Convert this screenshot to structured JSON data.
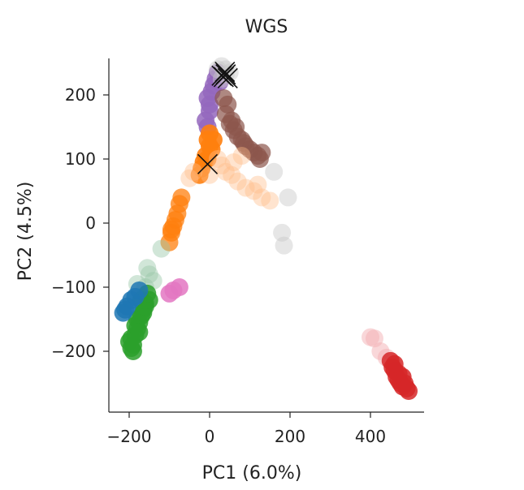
{
  "chart_data": {
    "type": "scatter",
    "title": "WGS",
    "xlabel": "PC1 (6.0%)",
    "ylabel": "PC2 (4.5%)",
    "xlim": [
      -240,
      540
    ],
    "ylim": [
      -295,
      260
    ],
    "xticks": [
      -200,
      0,
      200,
      400
    ],
    "xtick_labels": [
      "−200",
      "0",
      "200",
      "400"
    ],
    "yticks": [
      -200,
      -100,
      0,
      100,
      200
    ],
    "ytick_labels": [
      "−200",
      "−100",
      "0",
      "100",
      "200"
    ],
    "grid": false,
    "legend": "none",
    "series": [
      {
        "color": "#9467bd",
        "opacity": 0.85,
        "points": [
          [
            -5,
            195
          ],
          [
            0,
            175
          ],
          [
            5,
            205
          ],
          [
            10,
            215
          ],
          [
            15,
            225
          ],
          [
            20,
            235
          ],
          [
            25,
            220
          ],
          [
            -10,
            160
          ],
          [
            -5,
            150
          ],
          [
            0,
            185
          ]
        ]
      },
      {
        "color": "#8c564b",
        "opacity": 0.7,
        "points": [
          [
            40,
            170
          ],
          [
            50,
            155
          ],
          [
            60,
            145
          ],
          [
            70,
            135
          ],
          [
            80,
            130
          ],
          [
            90,
            120
          ],
          [
            100,
            115
          ],
          [
            110,
            110
          ],
          [
            120,
            105
          ],
          [
            130,
            110
          ],
          [
            45,
            185
          ],
          [
            35,
            195
          ],
          [
            55,
            160
          ],
          [
            65,
            150
          ],
          [
            85,
            125
          ],
          [
            125,
            100
          ]
        ]
      },
      {
        "color": "#ff7f0e",
        "opacity": 0.9,
        "points": [
          [
            -5,
            130
          ],
          [
            0,
            120
          ],
          [
            5,
            115
          ],
          [
            -10,
            105
          ],
          [
            -15,
            95
          ],
          [
            -20,
            85
          ],
          [
            -5,
            100
          ],
          [
            10,
            130
          ],
          [
            0,
            140
          ],
          [
            -25,
            75
          ]
        ]
      },
      {
        "color": "#ffbb88",
        "opacity": 0.4,
        "points": [
          [
            20,
            100
          ],
          [
            30,
            90
          ],
          [
            40,
            80
          ],
          [
            55,
            75
          ],
          [
            70,
            65
          ],
          [
            90,
            55
          ],
          [
            110,
            50
          ],
          [
            130,
            40
          ],
          [
            150,
            35
          ],
          [
            60,
            95
          ],
          [
            80,
            105
          ],
          [
            -40,
            80
          ],
          [
            -50,
            70
          ],
          [
            0,
            75
          ],
          [
            120,
            60
          ]
        ]
      },
      {
        "color": "#ff7f0e",
        "opacity": 0.75,
        "points": [
          [
            -75,
            30
          ],
          [
            -80,
            15
          ],
          [
            -85,
            5
          ],
          [
            -90,
            -5
          ],
          [
            -95,
            -15
          ],
          [
            -100,
            -30
          ],
          [
            -70,
            40
          ],
          [
            -95,
            -10
          ]
        ]
      },
      {
        "color": "#c7c7c7",
        "opacity": 0.45,
        "points": [
          [
            20,
            240
          ],
          [
            30,
            245
          ],
          [
            40,
            240
          ],
          [
            50,
            235
          ],
          [
            30,
            225
          ],
          [
            40,
            232
          ],
          [
            160,
            80
          ],
          [
            195,
            40
          ],
          [
            180,
            -15
          ],
          [
            185,
            -35
          ]
        ]
      },
      {
        "color": "#98c8a8",
        "opacity": 0.45,
        "points": [
          [
            -120,
            -40
          ],
          [
            -150,
            -80
          ],
          [
            -160,
            -100
          ],
          [
            -170,
            -115
          ],
          [
            -140,
            -90
          ],
          [
            -180,
            -95
          ],
          [
            -155,
            -70
          ]
        ]
      },
      {
        "color": "#2ca02c",
        "opacity": 0.85,
        "points": [
          [
            -195,
            -180
          ],
          [
            -190,
            -190
          ],
          [
            -185,
            -175
          ],
          [
            -180,
            -165
          ],
          [
            -175,
            -155
          ],
          [
            -170,
            -145
          ],
          [
            -165,
            -135
          ],
          [
            -160,
            -125
          ],
          [
            -180,
            -150
          ],
          [
            -185,
            -160
          ],
          [
            -195,
            -195
          ],
          [
            -190,
            -200
          ],
          [
            -175,
            -170
          ],
          [
            -165,
            -140
          ],
          [
            -160,
            -130
          ],
          [
            -170,
            -120
          ],
          [
            -200,
            -185
          ],
          [
            -150,
            -120
          ],
          [
            -155,
            -110
          ]
        ]
      },
      {
        "color": "#1f77b4",
        "opacity": 0.85,
        "points": [
          [
            -215,
            -140
          ],
          [
            -205,
            -130
          ],
          [
            -195,
            -120
          ],
          [
            -185,
            -115
          ],
          [
            -175,
            -105
          ],
          [
            -210,
            -135
          ]
        ]
      },
      {
        "color": "#e377c2",
        "opacity": 0.85,
        "points": [
          [
            -100,
            -110
          ],
          [
            -90,
            -105
          ],
          [
            -75,
            -100
          ]
        ]
      },
      {
        "color": "#f4b0b4",
        "opacity": 0.5,
        "points": [
          [
            400,
            -178
          ],
          [
            410,
            -180
          ],
          [
            425,
            -200
          ],
          [
            440,
            -210
          ]
        ]
      },
      {
        "color": "#d62728",
        "opacity": 0.85,
        "points": [
          [
            450,
            -215
          ],
          [
            455,
            -225
          ],
          [
            460,
            -230
          ],
          [
            465,
            -240
          ],
          [
            470,
            -245
          ],
          [
            475,
            -250
          ],
          [
            480,
            -255
          ],
          [
            485,
            -250
          ],
          [
            490,
            -258
          ],
          [
            460,
            -220
          ],
          [
            470,
            -235
          ],
          [
            480,
            -240
          ],
          [
            495,
            -262
          ]
        ]
      }
    ],
    "markers": {
      "symbol": "x",
      "color": "#111111",
      "points": [
        [
          30,
          230
        ],
        [
          35,
          228
        ],
        [
          40,
          232
        ],
        [
          45,
          226
        ],
        [
          38,
          236
        ],
        [
          -5,
          92
        ]
      ]
    }
  }
}
